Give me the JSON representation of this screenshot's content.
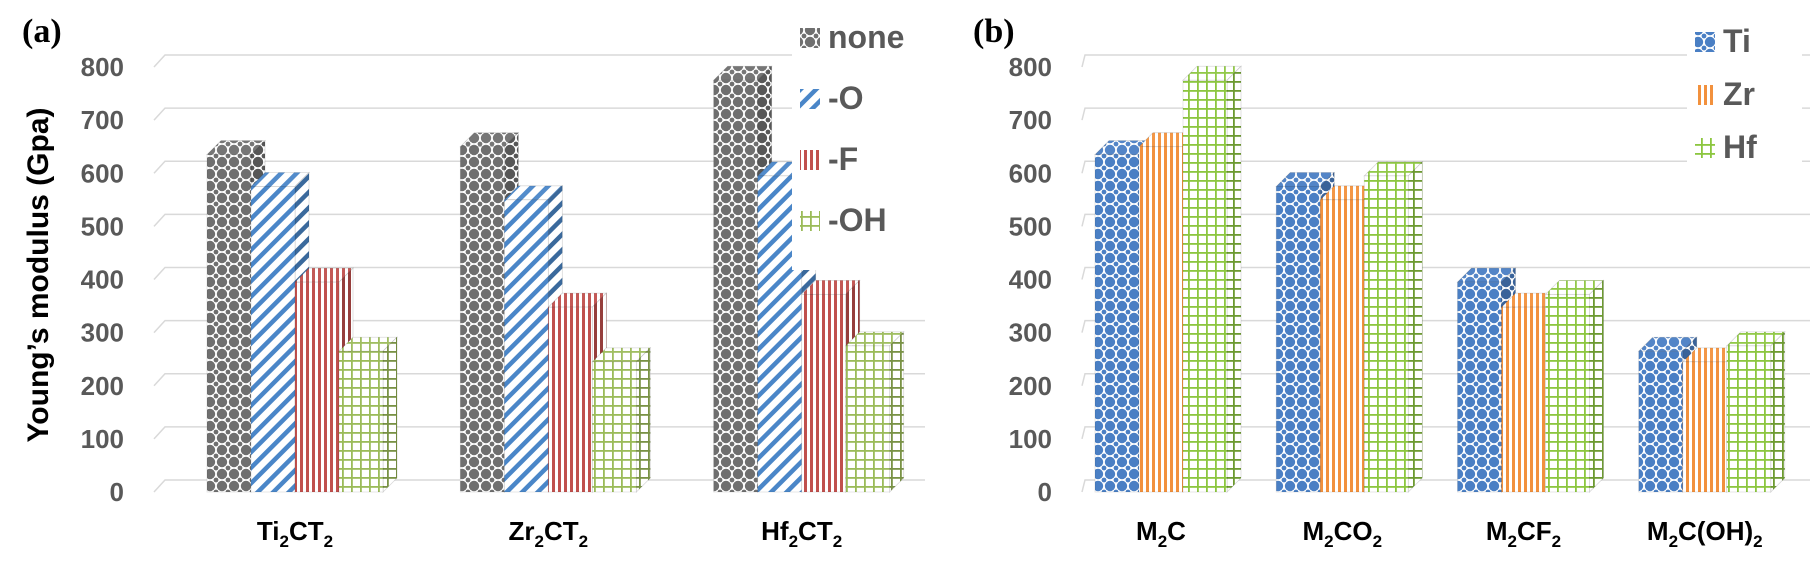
{
  "colors": {
    "none": "#6f6f6f",
    "O": "#4a86c8",
    "F": "#c0504d",
    "OH": "#9bbb59",
    "Ti": "#4a7fc4",
    "Zr": "#f2913d",
    "Hf": "#8cc63f"
  },
  "chart_data": [
    {
      "type": "bar",
      "panel_label": "(a)",
      "title": "",
      "xlabel": "",
      "ylabel": "Young’s modulus (Gpa)",
      "ylim": [
        0,
        800
      ],
      "yticks": [
        "0",
        "100",
        "200",
        "300",
        "400",
        "500",
        "600",
        "700",
        "800"
      ],
      "grid": true,
      "legend_position": "top-right",
      "categories": [
        {
          "base": "Ti",
          "s1": "2",
          "mid": "CT",
          "s2": "2",
          "tail": "",
          "s3": ""
        },
        {
          "base": "Zr",
          "s1": "2",
          "mid": "CT",
          "s2": "2",
          "tail": "",
          "s3": ""
        },
        {
          "base": "Hf",
          "s1": "2",
          "mid": "CT",
          "s2": "2",
          "tail": "",
          "s3": ""
        }
      ],
      "series": [
        {
          "name": "none",
          "color_key": "none",
          "pattern": "dots",
          "values": [
            635,
            650,
            775
          ]
        },
        {
          "name": "-O",
          "color_key": "O",
          "pattern": "diag",
          "values": [
            575,
            550,
            595
          ]
        },
        {
          "name": "-F",
          "color_key": "F",
          "pattern": "vert",
          "values": [
            395,
            348,
            372
          ]
        },
        {
          "name": "-OH",
          "color_key": "OH",
          "pattern": "grid",
          "values": [
            265,
            245,
            275
          ]
        }
      ]
    },
    {
      "type": "bar",
      "panel_label": "(b)",
      "title": "",
      "xlabel": "",
      "ylabel": "",
      "ylim": [
        0,
        800
      ],
      "yticks": [
        "0",
        "100",
        "200",
        "300",
        "400",
        "500",
        "600",
        "700",
        "800"
      ],
      "grid": true,
      "legend_position": "top-right",
      "categories": [
        {
          "base": "M",
          "s1": "2",
          "mid": "C",
          "s2": "",
          "tail": "",
          "s3": ""
        },
        {
          "base": "M",
          "s1": "2",
          "mid": "CO",
          "s2": "2",
          "tail": "",
          "s3": ""
        },
        {
          "base": "M",
          "s1": "2",
          "mid": "CF",
          "s2": "2",
          "tail": "",
          "s3": ""
        },
        {
          "base": "M",
          "s1": "2",
          "mid": "C(OH)",
          "s2": "2",
          "tail": "",
          "s3": ""
        }
      ],
      "series": [
        {
          "name": "Ti",
          "color_key": "Ti",
          "pattern": "dots",
          "values": [
            635,
            575,
            395,
            265
          ]
        },
        {
          "name": "Zr",
          "color_key": "Zr",
          "pattern": "vert",
          "values": [
            650,
            550,
            348,
            245
          ]
        },
        {
          "name": "Hf",
          "color_key": "Hf",
          "pattern": "grid",
          "values": [
            775,
            595,
            372,
            275
          ]
        }
      ]
    }
  ]
}
